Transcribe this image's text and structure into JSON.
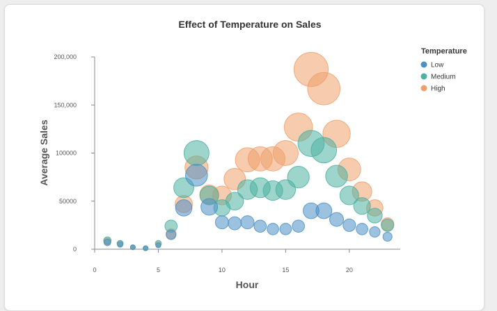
{
  "chart_data": {
    "type": "scatter",
    "title": "Effect of Temperature on Sales",
    "xlabel": "Hour",
    "ylabel": "Average Sales",
    "xlim": [
      0,
      24
    ],
    "ylim": [
      0,
      200000
    ],
    "x_ticks": [
      0,
      5,
      10,
      15,
      20
    ],
    "y_ticks": [
      {
        "value": 0,
        "label": "0"
      },
      {
        "value": 50000,
        "label": "50000"
      },
      {
        "value": 100000,
        "label": "100000"
      },
      {
        "value": 150000,
        "label": "150,000"
      },
      {
        "value": 200000,
        "label": "200,000"
      }
    ],
    "grid": false,
    "legend": {
      "title": "Temperature",
      "position": "right"
    },
    "bubble_size_encodes": "y",
    "series": [
      {
        "name": "Low",
        "color": "#4a8fc6",
        "points": [
          [
            1,
            7000
          ],
          [
            2,
            5000
          ],
          [
            3,
            2000
          ],
          [
            4,
            1000
          ],
          [
            5,
            4000
          ],
          [
            6,
            15000
          ],
          [
            7,
            43000
          ],
          [
            8,
            77000
          ],
          [
            9,
            44000
          ],
          [
            10,
            28000
          ],
          [
            11,
            27000
          ],
          [
            12,
            28000
          ],
          [
            13,
            24000
          ],
          [
            14,
            21000
          ],
          [
            15,
            21000
          ],
          [
            16,
            24000
          ],
          [
            17,
            40000
          ],
          [
            18,
            40000
          ],
          [
            19,
            31000
          ],
          [
            20,
            25000
          ],
          [
            21,
            21000
          ],
          [
            22,
            18000
          ],
          [
            23,
            13000
          ]
        ]
      },
      {
        "name": "Medium",
        "color": "#4cb0a2",
        "points": [
          [
            1,
            9000
          ],
          [
            2,
            6000
          ],
          [
            3,
            2000
          ],
          [
            4,
            1000
          ],
          [
            5,
            6000
          ],
          [
            6,
            24000
          ],
          [
            7,
            64000
          ],
          [
            8,
            100000
          ],
          [
            9,
            56000
          ],
          [
            10,
            43000
          ],
          [
            11,
            50000
          ],
          [
            12,
            62000
          ],
          [
            13,
            64000
          ],
          [
            14,
            61000
          ],
          [
            15,
            62000
          ],
          [
            16,
            75000
          ],
          [
            17,
            110000
          ],
          [
            18,
            103000
          ],
          [
            19,
            76000
          ],
          [
            20,
            56000
          ],
          [
            21,
            45000
          ],
          [
            22,
            35000
          ],
          [
            23,
            25000
          ]
        ]
      },
      {
        "name": "High",
        "color": "#f0a06c",
        "points": [
          [
            1,
            8000
          ],
          [
            2,
            6000
          ],
          [
            3,
            2000
          ],
          [
            4,
            1000
          ],
          [
            5,
            5000
          ],
          [
            6,
            16000
          ],
          [
            7,
            47000
          ],
          [
            8,
            85000
          ],
          [
            9,
            57000
          ],
          [
            10,
            56000
          ],
          [
            11,
            73000
          ],
          [
            12,
            93000
          ],
          [
            13,
            94000
          ],
          [
            14,
            94000
          ],
          [
            15,
            100000
          ],
          [
            16,
            127000
          ],
          [
            17,
            187000
          ],
          [
            18,
            167000
          ],
          [
            19,
            120000
          ],
          [
            20,
            83000
          ],
          [
            21,
            60000
          ],
          [
            22,
            43000
          ],
          [
            23,
            26000
          ]
        ]
      }
    ]
  }
}
